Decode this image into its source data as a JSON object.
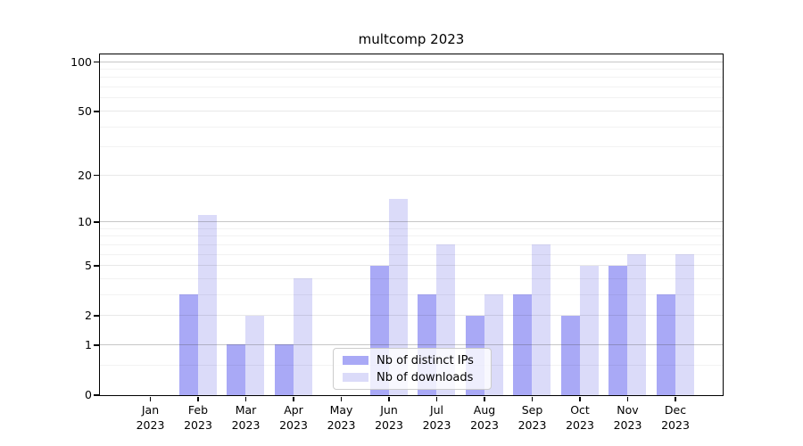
{
  "title": "multcomp 2023",
  "chart_data": {
    "type": "bar",
    "title": "multcomp 2023",
    "categories": [
      "Jan 2023",
      "Feb 2023",
      "Mar 2023",
      "Apr 2023",
      "May 2023",
      "Jun 2023",
      "Jul 2023",
      "Aug 2023",
      "Sep 2023",
      "Oct 2023",
      "Nov 2023",
      "Dec 2023"
    ],
    "series": [
      {
        "name": "Nb of distinct IPs",
        "color": "#a9a9f6",
        "values": [
          0,
          3,
          1,
          1,
          0,
          5,
          3,
          2,
          3,
          2,
          5,
          3
        ]
      },
      {
        "name": "Nb of downloads",
        "color": "#dbdbf9",
        "values": [
          0,
          11,
          2,
          4,
          0,
          14,
          7,
          3,
          7,
          5,
          6,
          6
        ]
      }
    ],
    "xlabel": "",
    "ylabel": "",
    "yscale": "log1p",
    "ylim": [
      0,
      112
    ],
    "yticks": [
      0,
      1,
      2,
      5,
      10,
      20,
      50,
      100
    ],
    "minor_yticks": [
      0.5,
      3,
      4,
      6,
      7,
      8,
      9,
      30,
      40,
      60,
      70,
      80,
      90
    ],
    "grid": "horizontal",
    "legend_position": "lower center"
  },
  "legend": {
    "items": [
      {
        "label": "Nb of distinct IPs",
        "color": "#a9a9f6"
      },
      {
        "label": "Nb of downloads",
        "color": "#dbdbf9"
      }
    ]
  },
  "colors": {
    "distinct_ips_bar": "#a9a9f6",
    "downloads_bar": "#dbdbf9",
    "axis": "#000000",
    "major_gridline": "#b7b7b7",
    "minor_gridline": "#f0f0f0",
    "legend_border": "#cccccc"
  }
}
